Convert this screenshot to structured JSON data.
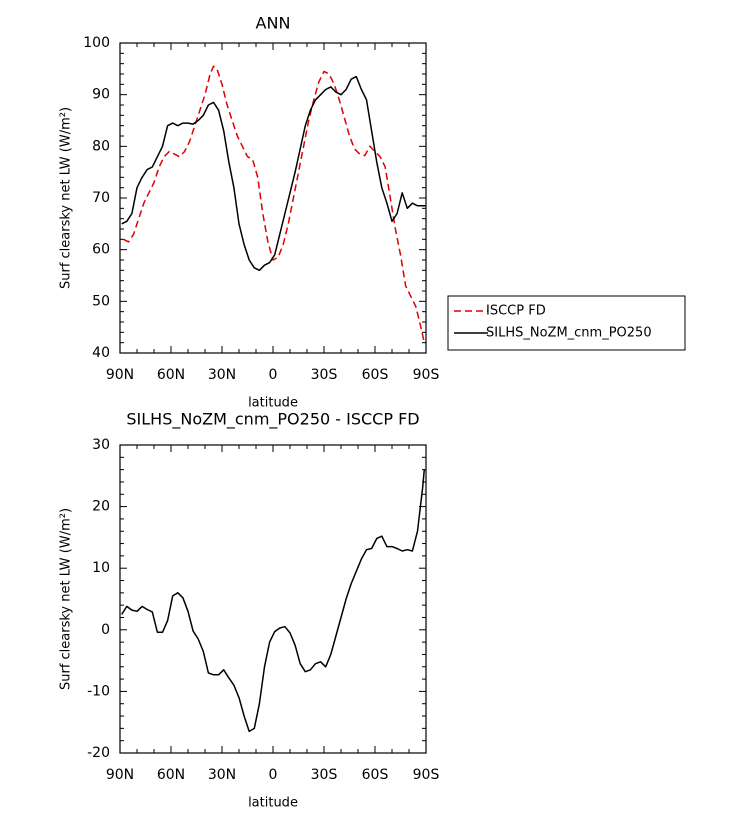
{
  "chart_data": [
    {
      "type": "line",
      "title": "ANN",
      "xlabel": "latitude",
      "ylabel": "Surf clearsky net LW (W/m²)",
      "xlim": [
        -90,
        90
      ],
      "ylim": [
        40,
        100
      ],
      "x_tick_values": [
        -90,
        -60,
        -30,
        0,
        30,
        60,
        90
      ],
      "x_tick_labels": [
        "90N",
        "60N",
        "30N",
        "0",
        "30S",
        "60S",
        "90S"
      ],
      "y_ticks": [
        40,
        50,
        60,
        70,
        80,
        90,
        100
      ],
      "legend_position": "right",
      "series": [
        {
          "name": "ISCCP FD",
          "color": "#e00000",
          "dash": "dashed",
          "x": [
            -88,
            -85,
            -82,
            -79,
            -76,
            -73,
            -70,
            -67,
            -64,
            -61,
            -58,
            -55,
            -52,
            -49,
            -46,
            -43,
            -40,
            -37,
            -35,
            -33,
            -30,
            -27,
            -24,
            -21,
            -18,
            -15,
            -12,
            -9,
            -6,
            -3,
            0,
            3,
            6,
            9,
            12,
            15,
            18,
            21,
            24,
            27,
            30,
            33,
            36,
            39,
            42,
            45,
            48,
            51,
            54,
            57,
            60,
            63,
            66,
            69,
            72,
            75,
            78,
            81,
            84,
            87,
            89
          ],
          "y": [
            62,
            61.5,
            63,
            66,
            69,
            71,
            73,
            76,
            78,
            79,
            78.5,
            78,
            79,
            81,
            84,
            87,
            90,
            94,
            95.5,
            95,
            92,
            88,
            85,
            82,
            80,
            78,
            77.5,
            74,
            67,
            61.5,
            58,
            58.5,
            61,
            65,
            70,
            75,
            80,
            85,
            89,
            92.5,
            94.5,
            94,
            92,
            89,
            85.5,
            82,
            79.5,
            78.5,
            78.2,
            80,
            79,
            78,
            76,
            70,
            64,
            59,
            53,
            51,
            49,
            45,
            42
          ]
        },
        {
          "name": "SILHS_NoZM_cnm_PO250",
          "color": "#000000",
          "dash": "solid",
          "x": [
            -89,
            -86,
            -83,
            -80,
            -77,
            -74,
            -71,
            -68,
            -65,
            -62,
            -59,
            -56,
            -53,
            -50,
            -47,
            -44,
            -41,
            -38,
            -35,
            -32,
            -29,
            -26,
            -23,
            -20,
            -17,
            -14,
            -11,
            -8,
            -5,
            -2,
            1,
            4,
            7,
            10,
            13,
            16,
            19,
            22,
            25,
            28,
            31,
            34,
            37,
            40,
            43,
            46,
            49,
            52,
            55,
            58,
            61,
            64,
            67,
            70,
            73,
            76,
            79,
            82,
            85,
            88,
            90
          ],
          "y": [
            65,
            65.5,
            67,
            72,
            74,
            75.5,
            76,
            78,
            80,
            84,
            84.5,
            84,
            84.5,
            84.5,
            84.3,
            85,
            86,
            88,
            88.5,
            87,
            83,
            77,
            72,
            65,
            61,
            58,
            56.5,
            56,
            57,
            57.5,
            59,
            63,
            67,
            71,
            75,
            79.5,
            84,
            87,
            89,
            90,
            91,
            91.5,
            90.5,
            90,
            91,
            93,
            93.5,
            91,
            89,
            83,
            77,
            72,
            69,
            65.5,
            67,
            71,
            68,
            69,
            68.5,
            68.5,
            68.5
          ]
        }
      ]
    },
    {
      "type": "line",
      "title": "SILHS_NoZM_cnm_PO250 - ISCCP FD",
      "xlabel": "latitude",
      "ylabel": "Surf clearsky net LW (W/m²)",
      "xlim": [
        -90,
        90
      ],
      "ylim": [
        -20,
        30
      ],
      "x_tick_values": [
        -90,
        -60,
        -30,
        0,
        30,
        60,
        90
      ],
      "x_tick_labels": [
        "90N",
        "60N",
        "30N",
        "0",
        "30S",
        "60S",
        "90S"
      ],
      "y_ticks": [
        -20,
        -10,
        0,
        10,
        20,
        30
      ],
      "series": [
        {
          "color": "#000000",
          "dash": "solid",
          "x": [
            -89,
            -86,
            -83,
            -80,
            -77,
            -74,
            -71,
            -68,
            -65,
            -62,
            -59,
            -56,
            -53,
            -50,
            -47,
            -44,
            -41,
            -38,
            -35,
            -32,
            -29,
            -26,
            -23,
            -20,
            -17,
            -14,
            -11,
            -8,
            -5,
            -2,
            1,
            4,
            7,
            10,
            13,
            16,
            19,
            22,
            25,
            28,
            31,
            34,
            37,
            40,
            43,
            46,
            49,
            52,
            55,
            58,
            61,
            64,
            67,
            70,
            73,
            76,
            79,
            82,
            85,
            88,
            89
          ],
          "y": [
            2.5,
            3.8,
            3.2,
            3.0,
            3.8,
            3.3,
            2.9,
            -0.4,
            -0.4,
            1.5,
            5.5,
            6.0,
            5.2,
            3.0,
            -0.2,
            -1.5,
            -3.5,
            -7.0,
            -7.3,
            -7.3,
            -6.5,
            -7.8,
            -9.0,
            -11.0,
            -14.0,
            -16.5,
            -16.0,
            -12.0,
            -6.0,
            -2.0,
            -0.3,
            0.3,
            0.5,
            -0.5,
            -2.5,
            -5.5,
            -6.8,
            -6.5,
            -5.5,
            -5.2,
            -6.0,
            -4.0,
            -1.0,
            2.0,
            5.0,
            7.5,
            9.5,
            11.5,
            13.0,
            13.2,
            14.8,
            15.2,
            13.5,
            13.5,
            13.2,
            12.8,
            13.0,
            12.8,
            16.0,
            23.0,
            26.0
          ]
        }
      ]
    }
  ]
}
